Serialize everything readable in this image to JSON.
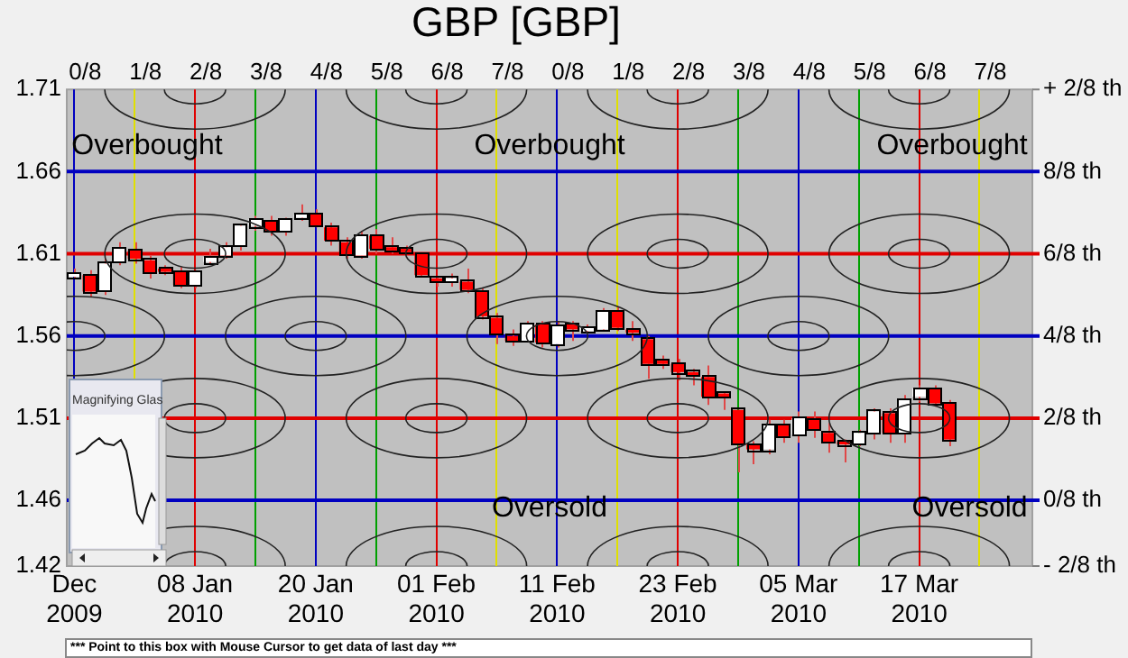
{
  "chart_data": {
    "type": "candlestick",
    "title": "GBP [GBP]",
    "categories": [
      "Dec 2009",
      null,
      null,
      null,
      null,
      null,
      null,
      null,
      "08 Jan 2010",
      null,
      null,
      null,
      null,
      null,
      null,
      null,
      "20 Jan 2010",
      null,
      null,
      null,
      null,
      null,
      null,
      null,
      "01 Feb 2010",
      null,
      null,
      null,
      null,
      null,
      null,
      null,
      "11 Feb 2010",
      null,
      null,
      null,
      null,
      null,
      null,
      null,
      "23 Feb 2010",
      null,
      null,
      null,
      null,
      null,
      null,
      null,
      "05 Mar 2010",
      null,
      null,
      null,
      null,
      null,
      null,
      null,
      "17 Mar 2010",
      null,
      null,
      null,
      null,
      null,
      null,
      null
    ],
    "ohlc": [
      [
        1.596,
        1.601,
        1.595,
        1.598
      ],
      [
        1.597,
        1.6,
        1.584,
        1.587
      ],
      [
        1.587,
        1.607,
        1.585,
        1.604
      ],
      [
        1.605,
        1.617,
        1.603,
        1.613
      ],
      [
        1.612,
        1.617,
        1.604,
        1.607
      ],
      [
        1.606,
        1.609,
        1.595,
        1.598
      ],
      [
        1.601,
        1.603,
        1.597,
        1.599
      ],
      [
        1.599,
        1.602,
        1.589,
        1.591
      ],
      [
        1.591,
        1.6,
        1.589,
        1.599
      ],
      [
        1.605,
        1.613,
        1.604,
        1.608
      ],
      [
        1.609,
        1.617,
        1.607,
        1.614
      ],
      [
        1.615,
        1.628,
        1.612,
        1.627
      ],
      [
        1.627,
        1.633,
        1.624,
        1.631
      ],
      [
        1.63,
        1.633,
        1.621,
        1.624
      ],
      [
        1.624,
        1.632,
        1.621,
        1.631
      ],
      [
        1.632,
        1.64,
        1.63,
        1.634
      ],
      [
        1.634,
        1.637,
        1.626,
        1.627
      ],
      [
        1.626,
        1.629,
        1.615,
        1.618
      ],
      [
        1.617,
        1.62,
        1.607,
        1.609
      ],
      [
        1.609,
        1.624,
        1.607,
        1.621
      ],
      [
        1.621,
        1.625,
        1.61,
        1.613
      ],
      [
        1.614,
        1.62,
        1.61,
        1.612
      ],
      [
        1.613,
        1.615,
        1.61,
        1.611
      ],
      [
        1.61,
        1.611,
        1.596,
        1.597
      ],
      [
        1.595,
        1.596,
        1.59,
        1.593
      ],
      [
        1.593,
        1.598,
        1.59,
        1.595
      ],
      [
        1.593,
        1.601,
        1.586,
        1.588
      ],
      [
        1.587,
        1.589,
        1.57,
        1.572
      ],
      [
        1.571,
        1.574,
        1.555,
        1.561
      ],
      [
        1.56,
        1.564,
        1.554,
        1.557
      ],
      [
        1.557,
        1.569,
        1.556,
        1.567
      ],
      [
        1.567,
        1.569,
        1.553,
        1.556
      ],
      [
        1.555,
        1.569,
        1.553,
        1.566
      ],
      [
        1.567,
        1.569,
        1.557,
        1.564
      ],
      [
        1.563,
        1.567,
        1.562,
        1.565
      ],
      [
        1.564,
        1.577,
        1.563,
        1.575
      ],
      [
        1.575,
        1.578,
        1.563,
        1.565
      ],
      [
        1.564,
        1.569,
        1.557,
        1.562
      ],
      [
        1.558,
        1.56,
        1.534,
        1.543
      ],
      [
        1.545,
        1.548,
        1.54,
        1.543
      ],
      [
        1.543,
        1.546,
        1.533,
        1.538
      ],
      [
        1.538,
        1.54,
        1.53,
        1.536
      ],
      [
        1.535,
        1.542,
        1.518,
        1.523
      ],
      [
        1.525,
        1.526,
        1.515,
        1.523
      ],
      [
        1.515,
        1.515,
        1.477,
        1.494
      ],
      [
        1.494,
        1.496,
        1.482,
        1.491
      ],
      [
        1.491,
        1.509,
        1.488,
        1.506
      ],
      [
        1.506,
        1.509,
        1.495,
        1.499
      ],
      [
        1.5,
        1.514,
        1.495,
        1.51
      ],
      [
        1.509,
        1.514,
        1.498,
        1.503
      ],
      [
        1.501,
        1.507,
        1.489,
        1.495
      ],
      [
        1.496,
        1.497,
        1.483,
        1.494
      ],
      [
        1.494,
        1.503,
        1.493,
        1.501
      ],
      [
        1.501,
        1.516,
        1.497,
        1.514
      ],
      [
        1.513,
        1.516,
        1.495,
        1.501
      ],
      [
        1.501,
        1.524,
        1.495,
        1.521
      ],
      [
        1.523,
        1.53,
        1.52,
        1.528
      ],
      [
        1.528,
        1.53,
        1.517,
        1.519
      ],
      [
        1.519,
        1.521,
        1.493,
        1.497
      ],
      null,
      null,
      null,
      null,
      null
    ],
    "colors": [
      "#ffffff",
      "#ff0000",
      "#ffffff",
      "#ffffff",
      "#ff0000",
      "#ff0000",
      "#ff0000",
      "#ff0000",
      "#ffffff",
      "#ffffff",
      "#ffffff",
      "#ffffff",
      "#ffffff",
      "#ff0000",
      "#ffffff",
      "#ffffff",
      "#ff0000",
      "#ff0000",
      "#ff0000",
      "#ffffff",
      "#ff0000",
      "#ff0000",
      "#ff0000",
      "#ff0000",
      "#ff0000",
      "#ffffff",
      "#ff0000",
      "#ff0000",
      "#ff0000",
      "#ff0000",
      "#ffffff",
      "#ff0000",
      "#ffffff",
      "#ff0000",
      "#ffffff",
      "#ffffff",
      "#ff0000",
      "#ff0000",
      "#ff0000",
      "#ff0000",
      "#ff0000",
      "#ff0000",
      "#ff0000",
      "#ff0000",
      "#ff0000",
      "#ff0000",
      "#ffffff",
      "#ff0000",
      "#ffffff",
      "#ff0000",
      "#ff0000",
      "#ff0000",
      "#ffffff",
      "#ffffff",
      "#ff0000",
      "#ffffff",
      "#ffffff",
      "#ff0000",
      "#ff0000",
      null,
      null,
      null,
      null,
      null
    ],
    "ylim": [
      1.42,
      1.71
    ],
    "yticks": [
      1.42,
      1.46,
      1.51,
      1.56,
      1.61,
      1.66,
      1.71
    ],
    "ref_lines": [
      {
        "axis": "y",
        "value": 1.66,
        "label": "8/8 th",
        "color": "#0000c0"
      },
      {
        "axis": "y",
        "value": 1.61,
        "label": "6/8 th",
        "color": "#e00000"
      },
      {
        "axis": "y",
        "value": 1.56,
        "label": "4/8 th",
        "color": "#0000c0"
      },
      {
        "axis": "y",
        "value": 1.51,
        "label": "2/8 th",
        "color": "#e00000"
      },
      {
        "axis": "y",
        "value": 1.46,
        "label": "0/8 th",
        "color": "#0000c0"
      }
    ],
    "grid": "x",
    "annotations": [
      "Overbought",
      "Overbought",
      "Overbought",
      "Oversold",
      "Oversold",
      "0/8",
      "1/8",
      "2/8",
      "3/8",
      "4/8",
      "5/8",
      "6/8",
      "7/8",
      "0/8",
      "1/8",
      "2/8",
      "3/8",
      "4/8",
      "5/8",
      "6/8",
      "7/8",
      "Magnifying Glas",
      "*** Point to this box with Mouse Cursor to get data of last day ***",
      "+ 2/8 th",
      "- 2/8 th"
    ]
  }
}
